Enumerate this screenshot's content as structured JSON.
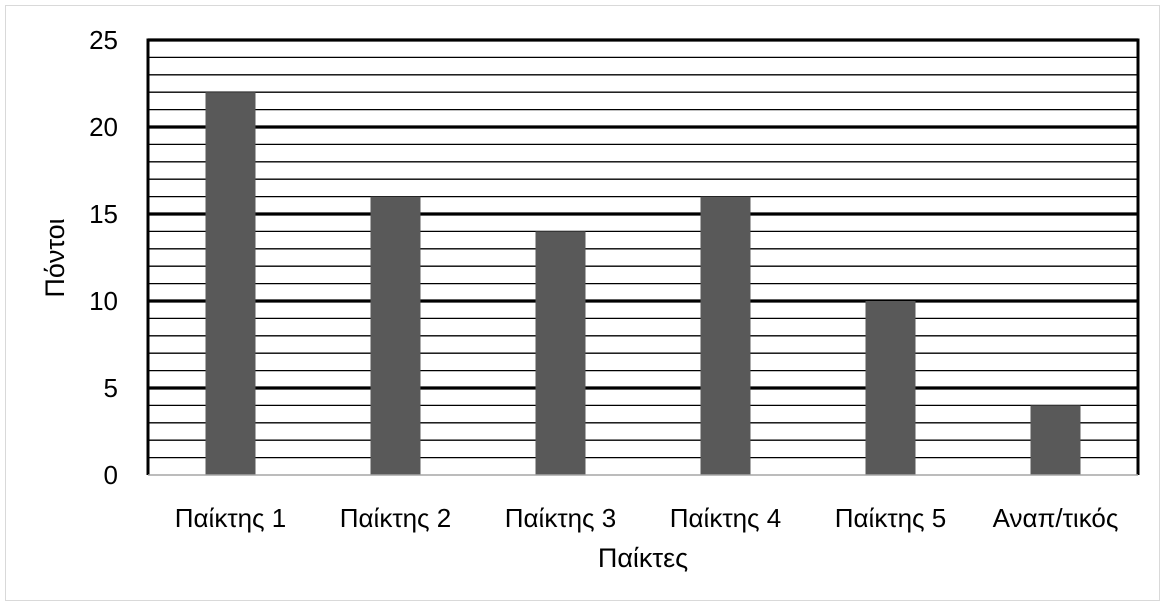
{
  "chart_data": {
    "type": "bar",
    "title": "",
    "xlabel": "Παίκτες",
    "ylabel": "Πόντοι",
    "categories": [
      "Παίκτης 1",
      "Παίκτης 2",
      "Παίκτης 3",
      "Παίκτης 4",
      "Παίκτης 5",
      "Αναπ/τικός"
    ],
    "values": [
      22,
      16,
      14,
      16,
      10,
      4
    ],
    "ylim": [
      0,
      25
    ],
    "yticks": [
      0,
      5,
      10,
      15,
      20,
      25
    ],
    "minor_gridline_step": 1,
    "grid": true,
    "legend": "none",
    "colors": {
      "bar": "#595959",
      "major_grid": "#000000",
      "minor_grid": "#000000",
      "text": "#000000"
    }
  }
}
